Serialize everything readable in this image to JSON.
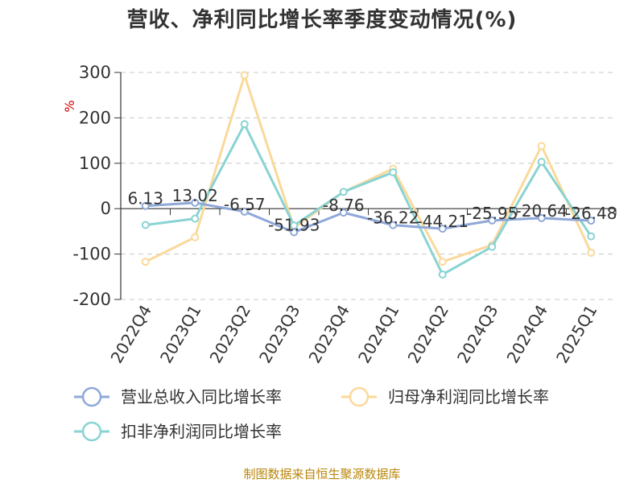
{
  "chart_data": {
    "type": "line",
    "title": "营收、净利同比增长率季度变动情况(%)",
    "ylabel": "%",
    "ylim": [
      -200,
      300
    ],
    "yticks": [
      300,
      200,
      100,
      0,
      -100,
      -200
    ],
    "grid": true,
    "legend_position": "bottom",
    "categories": [
      "2022Q4",
      "2023Q1",
      "2023Q2",
      "2023Q3",
      "2023Q4",
      "2024Q1",
      "2024Q2",
      "2024Q3",
      "2024Q4",
      "2025Q1"
    ],
    "series": [
      {
        "name": "营业总收入同比增长率",
        "color": "#8fa8d8",
        "values": [
          6.13,
          13.02,
          -6.57,
          -51.93,
          -8.76,
          -36.22,
          -44.21,
          -25.95,
          -20.64,
          -26.48
        ],
        "data_labels": [
          "6.13",
          "13.02",
          "-6.57",
          "-51.93",
          "-8.76",
          "-36.22",
          "-44.21",
          "-25.95",
          "-20.64",
          "-26.48"
        ]
      },
      {
        "name": "归母净利润同比增长率",
        "color": "#fad99a",
        "values": [
          -117,
          -63,
          294,
          -42,
          37,
          88,
          -117,
          -80,
          138,
          -97
        ]
      },
      {
        "name": "扣非净利润同比增长率",
        "color": "#8ad3d3",
        "values": [
          -36,
          -22,
          186,
          -37,
          37,
          80,
          -145,
          -84,
          103,
          -61
        ]
      }
    ]
  },
  "source_text": "制图数据来自恒生聚源数据库"
}
